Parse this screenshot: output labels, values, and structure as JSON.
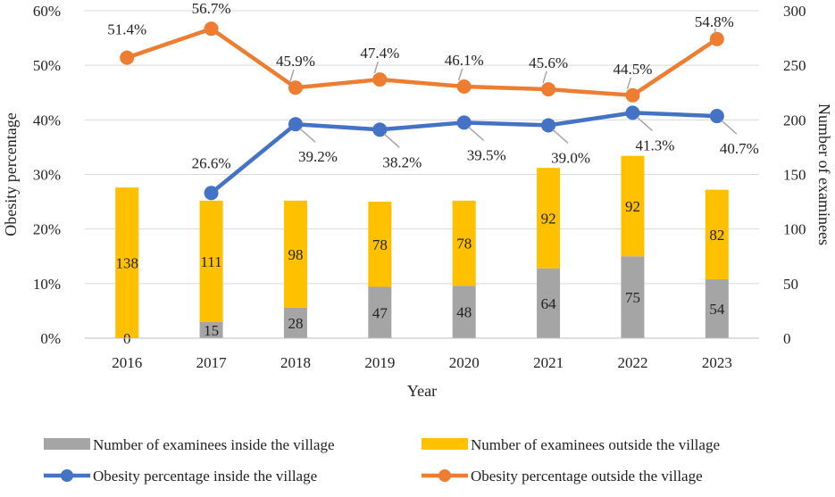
{
  "chart_data": {
    "type": "bar+line",
    "categories": [
      "2016",
      "2017",
      "2018",
      "2019",
      "2020",
      "2021",
      "2022",
      "2023"
    ],
    "xlabel": "Year",
    "ylabel_left": "Obesity percentage",
    "ylabel_right": "Number of examinees",
    "ylim_left": [
      0,
      60
    ],
    "yticks_left": [
      "0%",
      "10%",
      "20%",
      "30%",
      "40%",
      "50%",
      "60%"
    ],
    "ylim_right": [
      0,
      300
    ],
    "yticks_right": [
      "0",
      "50",
      "100",
      "150",
      "200",
      "250",
      "300"
    ],
    "bar_series": [
      {
        "name": "Number of examinees inside the village",
        "color": "#a5a5a5",
        "values": [
          0,
          15,
          28,
          47,
          48,
          64,
          75,
          54
        ],
        "labels": [
          "0",
          "15",
          "28",
          "47",
          "48",
          "64",
          "75",
          "54"
        ]
      },
      {
        "name": "Number of examinees outside the village",
        "color": "#ffc000",
        "values": [
          138,
          111,
          98,
          78,
          78,
          92,
          92,
          82
        ],
        "labels": [
          "138",
          "111",
          "98",
          "78",
          "78",
          "92",
          "92",
          "82"
        ]
      }
    ],
    "line_series": [
      {
        "name": "Obesity percentage inside the village",
        "color": "#4472c4",
        "values": [
          null,
          26.6,
          39.2,
          38.2,
          39.5,
          39.0,
          41.3,
          40.7
        ],
        "labels": [
          "",
          "26.6%",
          "39.2%",
          "38.2%",
          "39.5%",
          "39.0%",
          "41.3%",
          "40.7%"
        ]
      },
      {
        "name": "Obesity percentage outside the village",
        "color": "#ed7d31",
        "values": [
          51.4,
          56.7,
          45.9,
          47.4,
          46.1,
          45.6,
          44.5,
          54.8
        ],
        "labels": [
          "51.4%",
          "56.7%",
          "45.9%",
          "47.4%",
          "46.1%",
          "45.6%",
          "44.5%",
          "54.8%"
        ]
      }
    ],
    "legend": [
      "Number of examinees inside the village",
      "Number of examinees outside the village",
      "Obesity percentage inside the village",
      "Obesity percentage outside the village"
    ]
  }
}
